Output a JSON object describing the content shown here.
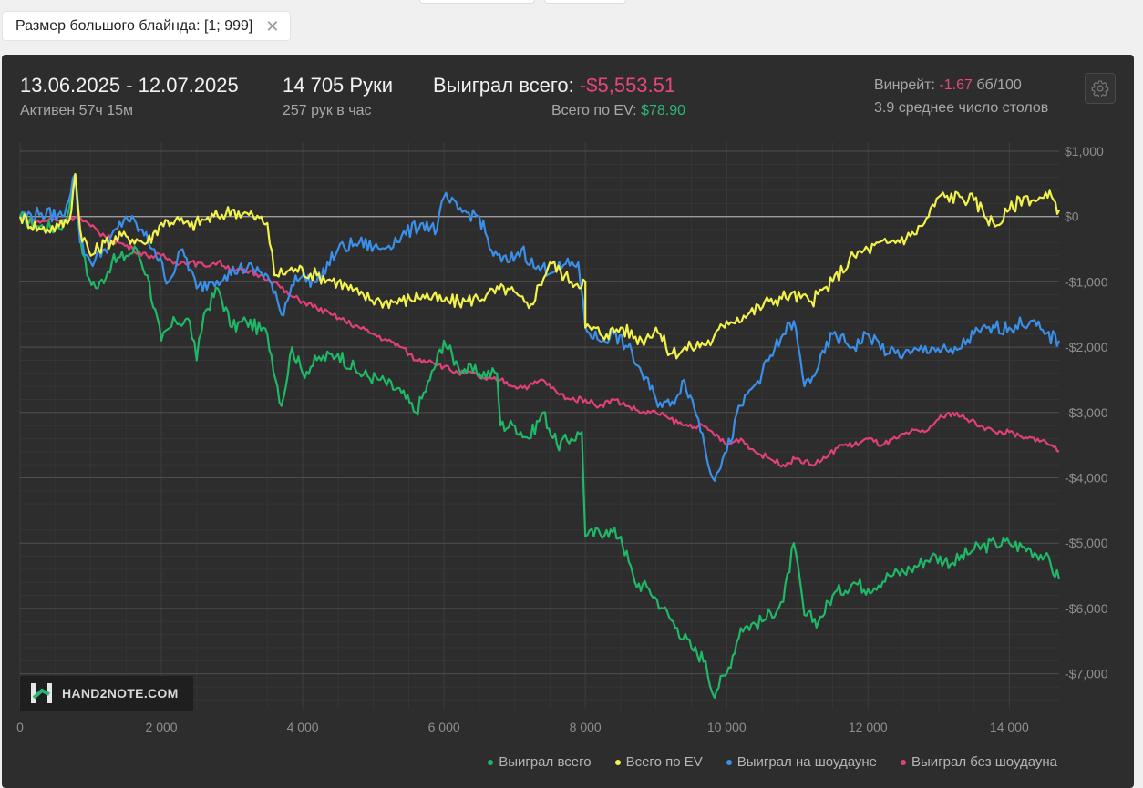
{
  "filter": {
    "label": "Размер большого блайнда: [1; 999]"
  },
  "summary": {
    "date_range": "13.06.2025 - 12.07.2025",
    "active": "Активен 57ч 15м",
    "hands": "14 705 Руки",
    "hands_per_hour": "257 рук в час",
    "won_total_label": "Выиграл всего:",
    "won_total_value": "-$5,553.51",
    "ev_total_label": "Всего по EV:",
    "ev_total_value": "$78.90",
    "winrate_label": "Винрейт:",
    "winrate_value": "-1.67",
    "winrate_unit": "бб/100",
    "avg_tables": "3.9 среднее число столов"
  },
  "logo": {
    "text": "HAND2NOTE.COM"
  },
  "colors": {
    "green": "#1fb866",
    "yellow": "#f2f24a",
    "blue": "#3a8fe8",
    "pink": "#e0407a",
    "background": "#2d2d2d"
  },
  "chart_data": {
    "type": "line",
    "xlim": [
      0,
      14705
    ],
    "ylim": [
      -7500,
      1000
    ],
    "x_ticks": [
      0,
      2000,
      4000,
      6000,
      8000,
      10000,
      12000,
      14000
    ],
    "x_tick_labels": [
      "0",
      "2 000",
      "4 000",
      "6 000",
      "8 000",
      "10 000",
      "12 000",
      "14 000"
    ],
    "y_ticks": [
      1000,
      0,
      -1000,
      -2000,
      -3000,
      -4000,
      -5000,
      -6000,
      -7000
    ],
    "y_tick_labels": [
      "$1,000",
      "$0",
      "-$1,000",
      "-$2,000",
      "-$3,000",
      "-$4,000",
      "-$5,000",
      "-$6,000",
      "-$7,000"
    ],
    "grid": true,
    "legend_position": "bottom-right",
    "series": [
      {
        "name": "Выиграл всего",
        "color": "#1fb866",
        "points": [
          [
            0,
            0
          ],
          [
            250,
            -150
          ],
          [
            500,
            -180
          ],
          [
            650,
            -80
          ],
          [
            780,
            650
          ],
          [
            850,
            -300
          ],
          [
            950,
            -900
          ],
          [
            1100,
            -1100
          ],
          [
            1300,
            -700
          ],
          [
            1500,
            -600
          ],
          [
            1650,
            -500
          ],
          [
            1800,
            -900
          ],
          [
            2000,
            -1900
          ],
          [
            2200,
            -1600
          ],
          [
            2400,
            -1600
          ],
          [
            2500,
            -2200
          ],
          [
            2600,
            -1500
          ],
          [
            2800,
            -1100
          ],
          [
            3000,
            -1700
          ],
          [
            3200,
            -1600
          ],
          [
            3500,
            -1800
          ],
          [
            3700,
            -2900
          ],
          [
            3850,
            -2000
          ],
          [
            4000,
            -2400
          ],
          [
            4200,
            -2200
          ],
          [
            4500,
            -2100
          ],
          [
            4800,
            -2400
          ],
          [
            5100,
            -2500
          ],
          [
            5400,
            -2700
          ],
          [
            5600,
            -3000
          ],
          [
            5800,
            -2500
          ],
          [
            6000,
            -1900
          ],
          [
            6200,
            -2300
          ],
          [
            6500,
            -2400
          ],
          [
            6750,
            -2400
          ],
          [
            6800,
            -3200
          ],
          [
            7000,
            -3200
          ],
          [
            7200,
            -3400
          ],
          [
            7400,
            -3000
          ],
          [
            7600,
            -3500
          ],
          [
            7800,
            -3400
          ],
          [
            7950,
            -3300
          ],
          [
            8000,
            -4900
          ],
          [
            8300,
            -4800
          ],
          [
            8500,
            -4900
          ],
          [
            8700,
            -5600
          ],
          [
            8900,
            -5700
          ],
          [
            9100,
            -6000
          ],
          [
            9300,
            -6300
          ],
          [
            9500,
            -6600
          ],
          [
            9700,
            -6800
          ],
          [
            9800,
            -7300
          ],
          [
            10000,
            -7000
          ],
          [
            10200,
            -6300
          ],
          [
            10500,
            -6200
          ],
          [
            10800,
            -5900
          ],
          [
            10950,
            -5000
          ],
          [
            11100,
            -6100
          ],
          [
            11300,
            -6200
          ],
          [
            11500,
            -5800
          ],
          [
            11800,
            -5600
          ],
          [
            12000,
            -5700
          ],
          [
            12300,
            -5500
          ],
          [
            12600,
            -5400
          ],
          [
            12900,
            -5200
          ],
          [
            13200,
            -5300
          ],
          [
            13500,
            -5100
          ],
          [
            13800,
            -5000
          ],
          [
            14000,
            -5000
          ],
          [
            14300,
            -5100
          ],
          [
            14500,
            -5200
          ],
          [
            14705,
            -5553
          ]
        ]
      },
      {
        "name": "Всего по EV",
        "color": "#f2f24a",
        "points": [
          [
            0,
            0
          ],
          [
            300,
            -200
          ],
          [
            550,
            -150
          ],
          [
            700,
            -50
          ],
          [
            780,
            650
          ],
          [
            850,
            -200
          ],
          [
            1000,
            -600
          ],
          [
            1200,
            -400
          ],
          [
            1500,
            -300
          ],
          [
            1800,
            -400
          ],
          [
            2000,
            -100
          ],
          [
            2200,
            -50
          ],
          [
            2400,
            -150
          ],
          [
            2600,
            -50
          ],
          [
            2800,
            0
          ],
          [
            3000,
            100
          ],
          [
            3300,
            0
          ],
          [
            3500,
            -100
          ],
          [
            3600,
            -900
          ],
          [
            3900,
            -800
          ],
          [
            4200,
            -900
          ],
          [
            4500,
            -1000
          ],
          [
            4800,
            -1200
          ],
          [
            5100,
            -1300
          ],
          [
            5400,
            -1300
          ],
          [
            5700,
            -1200
          ],
          [
            6000,
            -1300
          ],
          [
            6300,
            -1300
          ],
          [
            6600,
            -1200
          ],
          [
            6900,
            -1100
          ],
          [
            7200,
            -1400
          ],
          [
            7500,
            -700
          ],
          [
            7800,
            -1000
          ],
          [
            8000,
            -1000
          ],
          [
            8000,
            -1700
          ],
          [
            8300,
            -1800
          ],
          [
            8500,
            -1700
          ],
          [
            8800,
            -1900
          ],
          [
            9000,
            -1700
          ],
          [
            9200,
            -2100
          ],
          [
            9500,
            -2000
          ],
          [
            9800,
            -1900
          ],
          [
            10000,
            -1600
          ],
          [
            10300,
            -1500
          ],
          [
            10600,
            -1300
          ],
          [
            10900,
            -1200
          ],
          [
            11200,
            -1300
          ],
          [
            11500,
            -1000
          ],
          [
            11800,
            -600
          ],
          [
            12000,
            -500
          ],
          [
            12300,
            -400
          ],
          [
            12600,
            -300
          ],
          [
            12800,
            -100
          ],
          [
            13000,
            300
          ],
          [
            13300,
            300
          ],
          [
            13500,
            250
          ],
          [
            13800,
            -150
          ],
          [
            14000,
            100
          ],
          [
            14200,
            300
          ],
          [
            14400,
            250
          ],
          [
            14600,
            300
          ],
          [
            14705,
            100
          ]
        ]
      },
      {
        "name": "Выиграл на шоудауне",
        "color": "#3a8fe8",
        "points": [
          [
            0,
            0
          ],
          [
            300,
            50
          ],
          [
            600,
            0
          ],
          [
            780,
            650
          ],
          [
            850,
            -400
          ],
          [
            1000,
            -700
          ],
          [
            1200,
            -500
          ],
          [
            1500,
            0
          ],
          [
            1700,
            -200
          ],
          [
            1900,
            -500
          ],
          [
            2100,
            -1000
          ],
          [
            2300,
            -500
          ],
          [
            2500,
            -1100
          ],
          [
            2700,
            -1000
          ],
          [
            2900,
            -900
          ],
          [
            3100,
            -800
          ],
          [
            3300,
            -800
          ],
          [
            3500,
            -900
          ],
          [
            3700,
            -1500
          ],
          [
            3900,
            -900
          ],
          [
            4200,
            -1000
          ],
          [
            4500,
            -500
          ],
          [
            4800,
            -400
          ],
          [
            5100,
            -500
          ],
          [
            5400,
            -300
          ],
          [
            5700,
            -100
          ],
          [
            5900,
            -200
          ],
          [
            6000,
            300
          ],
          [
            6200,
            100
          ],
          [
            6500,
            0
          ],
          [
            6700,
            -600
          ],
          [
            6900,
            -700
          ],
          [
            7100,
            -500
          ],
          [
            7300,
            -800
          ],
          [
            7600,
            -800
          ],
          [
            7900,
            -700
          ],
          [
            8000,
            -1700
          ],
          [
            8200,
            -1900
          ],
          [
            8400,
            -1800
          ],
          [
            8600,
            -2000
          ],
          [
            8800,
            -2400
          ],
          [
            9000,
            -2800
          ],
          [
            9200,
            -2900
          ],
          [
            9400,
            -2500
          ],
          [
            9600,
            -3100
          ],
          [
            9800,
            -4000
          ],
          [
            10000,
            -3600
          ],
          [
            10200,
            -2900
          ],
          [
            10500,
            -2400
          ],
          [
            10800,
            -1800
          ],
          [
            10950,
            -1600
          ],
          [
            11100,
            -2600
          ],
          [
            11300,
            -2300
          ],
          [
            11500,
            -1800
          ],
          [
            11800,
            -2000
          ],
          [
            12000,
            -1800
          ],
          [
            12300,
            -2100
          ],
          [
            12600,
            -2100
          ],
          [
            12900,
            -2000
          ],
          [
            13200,
            -2100
          ],
          [
            13500,
            -1800
          ],
          [
            13800,
            -1700
          ],
          [
            14000,
            -1700
          ],
          [
            14300,
            -1600
          ],
          [
            14500,
            -1800
          ],
          [
            14705,
            -1900
          ]
        ]
      },
      {
        "name": "Выиграл без шоудауна",
        "color": "#e0407a",
        "points": [
          [
            0,
            0
          ],
          [
            200,
            -100
          ],
          [
            400,
            -50
          ],
          [
            600,
            -50
          ],
          [
            800,
            0
          ],
          [
            1000,
            -150
          ],
          [
            1200,
            -300
          ],
          [
            1400,
            -400
          ],
          [
            1600,
            -500
          ],
          [
            1800,
            -600
          ],
          [
            2000,
            -600
          ],
          [
            2200,
            -700
          ],
          [
            2400,
            -700
          ],
          [
            2600,
            -750
          ],
          [
            2800,
            -700
          ],
          [
            3000,
            -800
          ],
          [
            3200,
            -850
          ],
          [
            3400,
            -900
          ],
          [
            3600,
            -1000
          ],
          [
            3800,
            -1200
          ],
          [
            4000,
            -1300
          ],
          [
            4200,
            -1400
          ],
          [
            4400,
            -1500
          ],
          [
            4600,
            -1600
          ],
          [
            4800,
            -1700
          ],
          [
            5000,
            -1800
          ],
          [
            5200,
            -1900
          ],
          [
            5400,
            -2000
          ],
          [
            5600,
            -2200
          ],
          [
            5800,
            -2200
          ],
          [
            6000,
            -2300
          ],
          [
            6200,
            -2400
          ],
          [
            6400,
            -2400
          ],
          [
            6600,
            -2500
          ],
          [
            6800,
            -2500
          ],
          [
            7000,
            -2600
          ],
          [
            7200,
            -2600
          ],
          [
            7400,
            -2500
          ],
          [
            7600,
            -2700
          ],
          [
            7800,
            -2800
          ],
          [
            8000,
            -2800
          ],
          [
            8200,
            -2900
          ],
          [
            8400,
            -2800
          ],
          [
            8600,
            -2900
          ],
          [
            8800,
            -3000
          ],
          [
            9000,
            -3000
          ],
          [
            9200,
            -3100
          ],
          [
            9400,
            -3200
          ],
          [
            9600,
            -3200
          ],
          [
            9800,
            -3300
          ],
          [
            10000,
            -3500
          ],
          [
            10200,
            -3400
          ],
          [
            10400,
            -3600
          ],
          [
            10600,
            -3700
          ],
          [
            10800,
            -3800
          ],
          [
            11000,
            -3700
          ],
          [
            11200,
            -3800
          ],
          [
            11400,
            -3700
          ],
          [
            11600,
            -3500
          ],
          [
            11800,
            -3500
          ],
          [
            12000,
            -3400
          ],
          [
            12200,
            -3500
          ],
          [
            12400,
            -3400
          ],
          [
            12600,
            -3300
          ],
          [
            12800,
            -3300
          ],
          [
            13000,
            -3100
          ],
          [
            13200,
            -3000
          ],
          [
            13400,
            -3100
          ],
          [
            13600,
            -3200
          ],
          [
            13800,
            -3300
          ],
          [
            14000,
            -3300
          ],
          [
            14200,
            -3400
          ],
          [
            14400,
            -3400
          ],
          [
            14600,
            -3500
          ],
          [
            14705,
            -3600
          ]
        ]
      }
    ]
  }
}
